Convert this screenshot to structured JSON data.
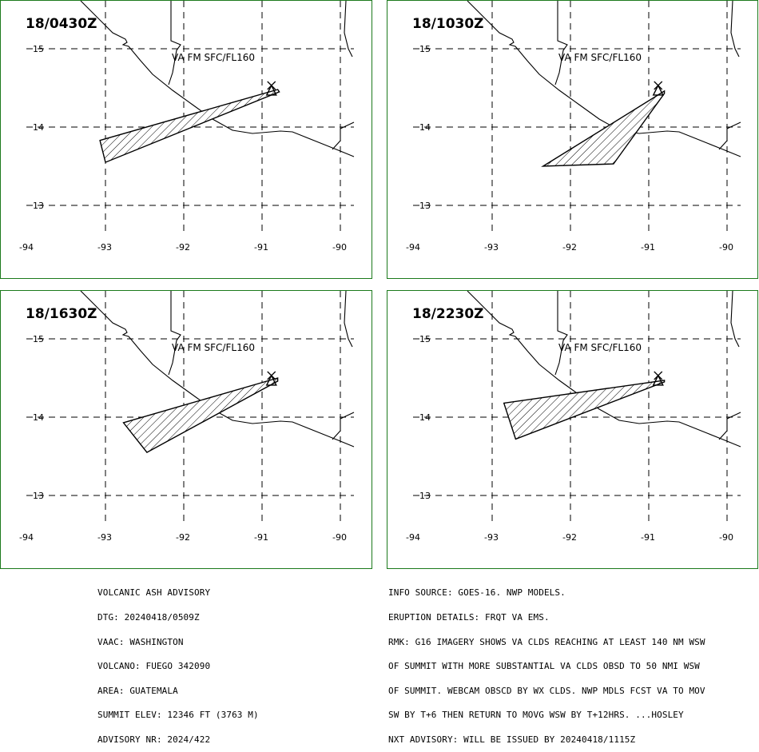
{
  "panels": [
    {
      "time_label": "18/0430Z",
      "layer_label": "VA FM SFC/FL160",
      "polygon": [
        [
          -93.07,
          13.83
        ],
        [
          -90.8,
          14.48
        ],
        [
          -90.78,
          14.45
        ],
        [
          -93.0,
          13.55
        ]
      ]
    },
    {
      "time_label": "18/1030Z",
      "layer_label": "VA FM SFC/FL160",
      "polygon": [
        [
          -92.35,
          13.5
        ],
        [
          -90.8,
          14.46
        ],
        [
          -90.8,
          14.43
        ],
        [
          -91.45,
          13.53
        ]
      ]
    },
    {
      "time_label": "18/1630Z",
      "layer_label": "VA FM SFC/FL160",
      "polygon": [
        [
          -92.77,
          13.93
        ],
        [
          -90.8,
          14.5
        ],
        [
          -90.8,
          14.46
        ],
        [
          -92.47,
          13.55
        ]
      ]
    },
    {
      "time_label": "18/2230Z",
      "layer_label": "VA FM SFC/FL160",
      "polygon": [
        [
          -92.85,
          14.18
        ],
        [
          -90.8,
          14.47
        ],
        [
          -90.8,
          14.45
        ],
        [
          -92.7,
          13.72
        ]
      ]
    }
  ],
  "axes": {
    "lon_ticks": [
      "-94",
      "-93",
      "-92",
      "-91",
      "-90"
    ],
    "lat_ticks": [
      "15",
      "14",
      "13"
    ],
    "lon_values": [
      -94,
      -93,
      -92,
      -91,
      -90
    ],
    "lat_values": [
      15,
      14,
      13
    ]
  },
  "volcano": {
    "symbol": "triangle-with-x",
    "lon": -90.88,
    "lat": 14.47
  },
  "advisory_left": [
    "VOLCANIC ASH ADVISORY",
    "DTG: 20240418/0509Z",
    "VAAC: WASHINGTON",
    "VOLCANO: FUEGO 342090",
    "AREA: GUATEMALA",
    "SUMMIT ELEV: 12346 FT (3763 M)",
    "ADVISORY NR: 2024/422"
  ],
  "advisory_right": [
    "INFO SOURCE: GOES-16. NWP MODELS.",
    "ERUPTION DETAILS: FRQT VA EMS.",
    "RMK: G16 IMAGERY SHOWS VA CLDS REACHING AT LEAST 140 NM WSW",
    "OF SUMMIT WITH MORE SUBSTANTIAL VA CLDS OBSD TO 50 NMI WSW",
    "OF SUMMIT. WEBCAM OBSCD BY WX CLDS. NWP MDLS FCST VA TO MOV",
    "SW BY T+6 THEN RETURN TO MOVG WSW BY T+12HRS. ...HOSLEY",
    "NXT ADVISORY: WILL BE ISSUED BY 20240418/1115Z"
  ],
  "colors": {
    "panel_border": "#1c7a1c",
    "ink": "#000000"
  }
}
